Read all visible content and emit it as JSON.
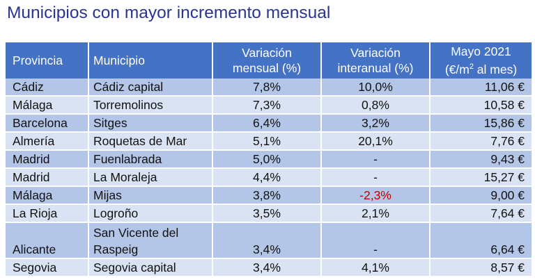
{
  "title": "Municipios con mayor incremento mensual",
  "colors": {
    "title": "#2a3590",
    "header_bg": "#4472c4",
    "row_dark": "#b4c6e7",
    "row_light": "#dae3f3",
    "negative": "#c00000"
  },
  "table": {
    "headers": {
      "provincia": "Provincia",
      "municipio": "Municipio",
      "var_mensual_l1": "Variación",
      "var_mensual_l2": "mensual (%)",
      "var_interanual_l1": "Variación",
      "var_interanual_l2": "interanual (%)",
      "precio_l1": "Mayo 2021",
      "precio_l2_pre": "(€/m",
      "precio_l2_sup": "2",
      "precio_l2_post": " al mes)"
    },
    "rows": [
      {
        "provincia": "Cádiz",
        "municipio": "Cádiz capital",
        "mensual": "7,8%",
        "interanual": "10,0%",
        "precio": "11,06 €"
      },
      {
        "provincia": "Málaga",
        "municipio": "Torremolinos",
        "mensual": "7,3%",
        "interanual": "0,8%",
        "precio": "10,58 €"
      },
      {
        "provincia": "Barcelona",
        "municipio": "Sitges",
        "mensual": "6,4%",
        "interanual": "3,2%",
        "precio": "15,86 €"
      },
      {
        "provincia": "Almería",
        "municipio": "Roquetas de Mar",
        "mensual": "5,1%",
        "interanual": "20,1%",
        "precio": "7,76 €"
      },
      {
        "provincia": "Madrid",
        "municipio": "Fuenlabrada",
        "mensual": "5,0%",
        "interanual": "-",
        "precio": "9,43 €"
      },
      {
        "provincia": "Madrid",
        "municipio": "La Moraleja",
        "mensual": "4,4%",
        "interanual": "-",
        "precio": "15,27 €"
      },
      {
        "provincia": "Málaga",
        "municipio": "Mijas",
        "mensual": "3,8%",
        "interanual": "-2,3%",
        "precio": "9,00 €"
      },
      {
        "provincia": "La Rioja",
        "municipio": "Logroño",
        "mensual": "3,5%",
        "interanual": "2,1%",
        "precio": "7,64 €"
      },
      {
        "provincia": "Alicante",
        "municipio": "San Vicente del Raspeig",
        "mensual": "3,4%",
        "interanual": "-",
        "precio": "6,64 €"
      },
      {
        "provincia": "Segovia",
        "municipio": "Segovia capital",
        "mensual": "3,4%",
        "interanual": "4,1%",
        "precio": "8,57 €"
      }
    ]
  }
}
